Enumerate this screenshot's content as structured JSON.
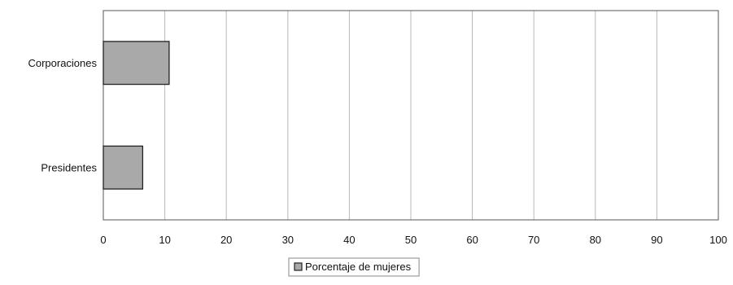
{
  "chart_data": {
    "type": "bar",
    "orientation": "horizontal",
    "categories": [
      "Corporaciones",
      "Presidentes"
    ],
    "series": [
      {
        "name": "Porcentaje de mujeres",
        "values": [
          10.7,
          6.4
        ]
      }
    ],
    "xlim": [
      0,
      100
    ],
    "x_ticks": [
      0,
      10,
      20,
      30,
      40,
      50,
      60,
      70,
      80,
      90,
      100
    ],
    "grid": "vertical",
    "legend_position": "bottom-center",
    "colors": {
      "bar": "#a9a9a9",
      "bar_stroke": "#222222",
      "grid": "#b8b8b8",
      "axis": "#555555"
    }
  }
}
